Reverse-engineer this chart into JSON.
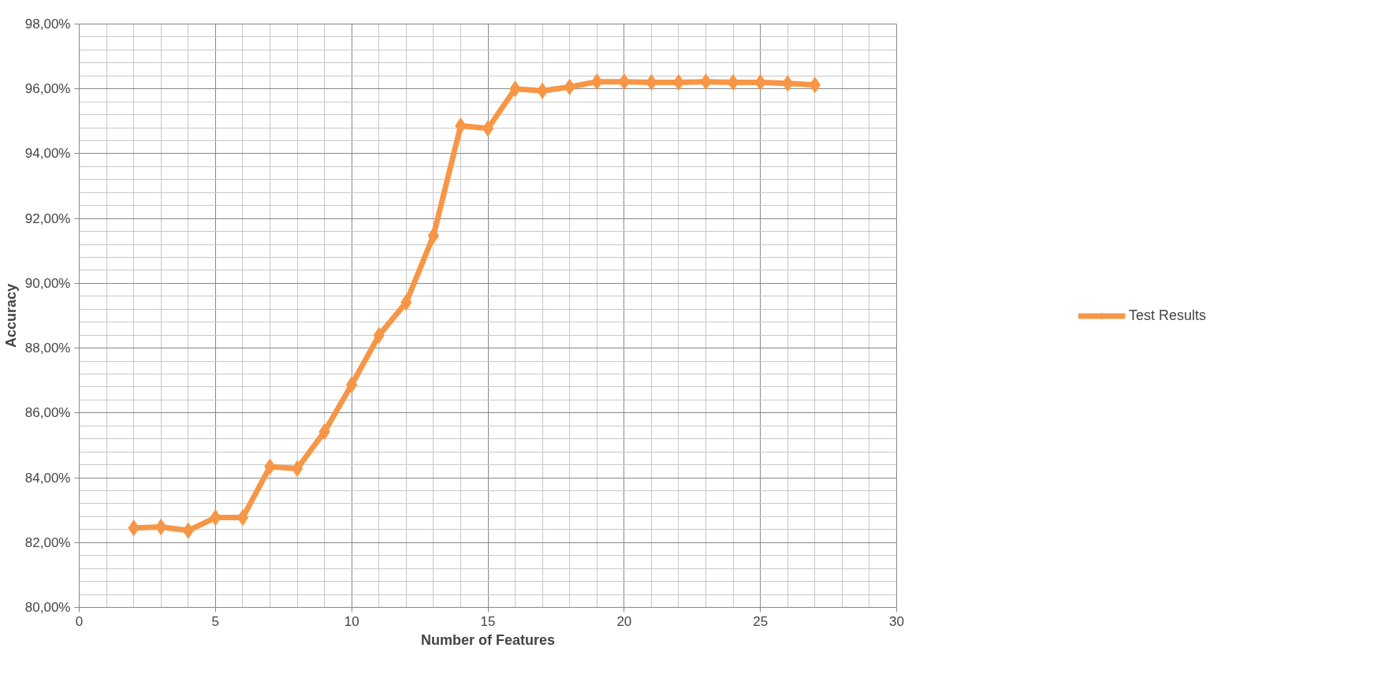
{
  "chart_data": {
    "type": "line",
    "xlabel": "Number of Features",
    "ylabel": "Accuracy",
    "x": [
      2,
      3,
      4,
      5,
      6,
      7,
      8,
      9,
      10,
      11,
      12,
      13,
      14,
      15,
      16,
      17,
      18,
      19,
      20,
      21,
      22,
      23,
      24,
      25,
      26,
      27
    ],
    "series": [
      {
        "name": "Test Results",
        "color": "#f79646",
        "values": [
          82.45,
          82.48,
          82.37,
          82.77,
          82.77,
          84.34,
          84.28,
          85.42,
          86.87,
          88.39,
          89.41,
          91.47,
          94.86,
          94.78,
          96.0,
          95.94,
          96.06,
          96.22,
          96.22,
          96.2,
          96.2,
          96.22,
          96.2,
          96.2,
          96.17,
          96.12
        ]
      }
    ],
    "xlim": [
      0,
      30
    ],
    "xticks": [
      0,
      5,
      10,
      15,
      20,
      25,
      30
    ],
    "ylim": [
      80,
      98
    ],
    "yticks": [
      {
        "value": 80,
        "label": "80,00%"
      },
      {
        "value": 82,
        "label": "82,00%"
      },
      {
        "value": 84,
        "label": "84,00%"
      },
      {
        "value": 86,
        "label": "86,00%"
      },
      {
        "value": 88,
        "label": "88,00%"
      },
      {
        "value": 90,
        "label": "90,00%"
      },
      {
        "value": 92,
        "label": "92,00%"
      },
      {
        "value": 94,
        "label": "94,00%"
      },
      {
        "value": 96,
        "label": "96,00%"
      },
      {
        "value": 98,
        "label": "98,00%"
      }
    ],
    "grid": true,
    "legend": "right",
    "marker": "diamond",
    "line_style": "solid"
  }
}
